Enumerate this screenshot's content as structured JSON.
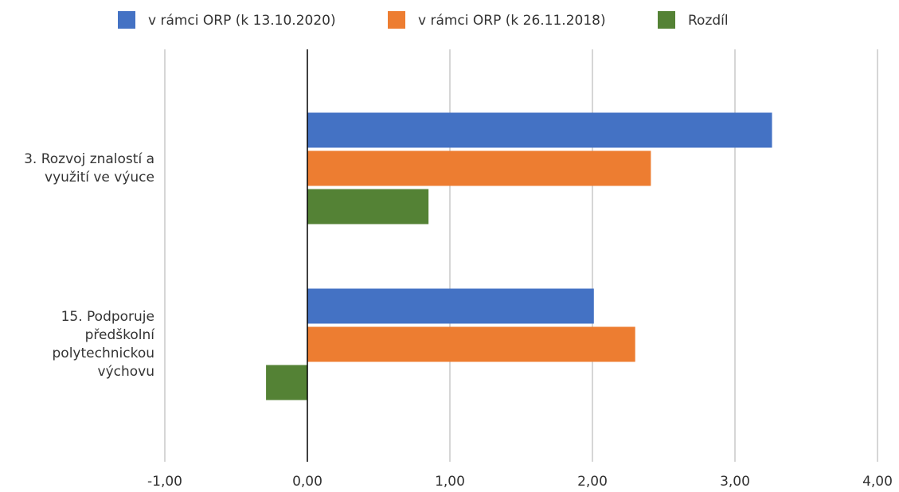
{
  "chart_data": {
    "type": "barh",
    "categories": [
      "3. Rozvoj znalostí a využití ve výuce",
      "15. Podporuje předškolní polytechnickou výchovu"
    ],
    "series": [
      {
        "name": "v rámci ORP (k 13.10.2020)",
        "color": "#4472c4",
        "values": [
          3.26,
          2.01
        ]
      },
      {
        "name": "v rámci ORP (k 26.11.2018)",
        "color": "#ed7d31",
        "values": [
          2.41,
          2.3
        ]
      },
      {
        "name": "Rozdíl",
        "color": "#548235",
        "values": [
          0.85,
          -0.29
        ]
      }
    ],
    "xlim": [
      -1,
      4
    ],
    "xticks": [
      {
        "value": -1,
        "label": "-1,00"
      },
      {
        "value": 0,
        "label": "0,00"
      },
      {
        "value": 1,
        "label": "1,00"
      },
      {
        "value": 2,
        "label": "2,00"
      },
      {
        "value": 3,
        "label": "3,00"
      },
      {
        "value": 4,
        "label": "4,00"
      }
    ],
    "grid": true,
    "legend": "top"
  }
}
